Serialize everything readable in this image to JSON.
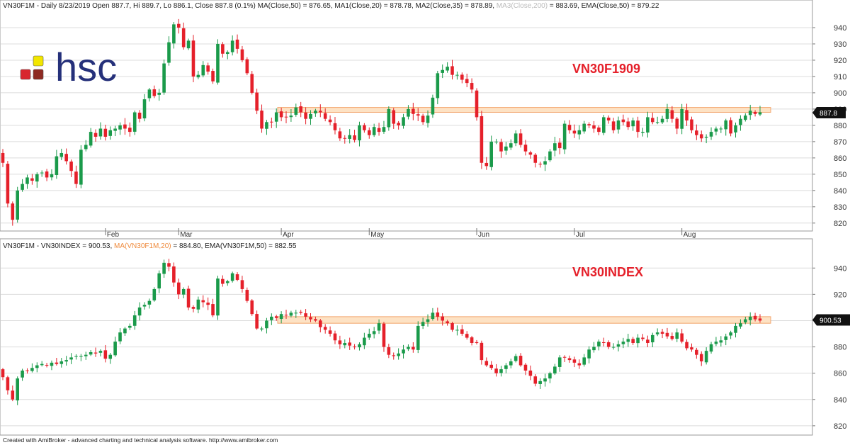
{
  "footer": "Created with AmiBroker - advanced charting and technical analysis software. http://www.amibroker.com",
  "logo": {
    "text": "hsc",
    "text_color": "#25307a",
    "square_yellow": "#f2e600",
    "square_red": "#d8262e",
    "square_dark": "#8e2a22"
  },
  "colors": {
    "up": "#1a9a4a",
    "down": "#e5202a",
    "band_fill": "#fde2c4",
    "band_stroke": "#f2a46b",
    "grid": "#dcdcdc",
    "tag_bg": "#111111"
  },
  "chart_data": [
    {
      "type": "candlestick",
      "header_parts": [
        {
          "text": "VN30F1M - Daily 8/23/2019 Open 887.7, Hi 889.7, Lo 886.1, Close 887.8 (0.1%) MA(Close,50) = 876.65, MA1(Close,20) = 878.78, MA2(Close,35) = 878.89, ",
          "color": "#222222"
        },
        {
          "text": "MA3(Close,200)",
          "color": "#bbbbbb"
        },
        {
          "text": " = 883.69, EMA(Close,50) = 879.22",
          "color": "#222222"
        }
      ],
      "title_overlay": "VN30F1909",
      "ylim": [
        816,
        950
      ],
      "yticks": [
        820,
        830,
        840,
        850,
        860,
        870,
        880,
        890,
        900,
        910,
        920,
        930,
        940
      ],
      "resistance_band": [
        888,
        891
      ],
      "last_value_label": "887.8",
      "last_value": 887.8,
      "x_month_labels": [
        {
          "label": "Feb",
          "index": 21
        },
        {
          "label": "Mar",
          "index": 36
        },
        {
          "label": "Apr",
          "index": 57
        },
        {
          "label": "May",
          "index": 75
        },
        {
          "label": "Jun",
          "index": 97
        },
        {
          "label": "Jul",
          "index": 117
        },
        {
          "label": "Aug",
          "index": 139
        }
      ],
      "closes": [
        857,
        832,
        822,
        840,
        844,
        848,
        846,
        850,
        851,
        848,
        850,
        861,
        863,
        858,
        852,
        844,
        865,
        868,
        876,
        873,
        878,
        873,
        877,
        878,
        880,
        878,
        876,
        888,
        884,
        896,
        902,
        898,
        900,
        918,
        931,
        942,
        940,
        928,
        932,
        910,
        911,
        917,
        913,
        907,
        930,
        924,
        925,
        932,
        927,
        920,
        912,
        900,
        889,
        878,
        882,
        882,
        888,
        885,
        885,
        886,
        891,
        888,
        884,
        887,
        889,
        888,
        884,
        882,
        877,
        872,
        872,
        874,
        871,
        880,
        877,
        874,
        879,
        876,
        879,
        890,
        881,
        880,
        885,
        890,
        887,
        886,
        882,
        886,
        897,
        912,
        914,
        916,
        911,
        911,
        908,
        906,
        902,
        885,
        857,
        855,
        870,
        870,
        864,
        867,
        869,
        875,
        868,
        864,
        862,
        857,
        856,
        858,
        864,
        869,
        866,
        881,
        877,
        875,
        877,
        881,
        880,
        878,
        876,
        885,
        883,
        877,
        883,
        882,
        879,
        883,
        876,
        876,
        885,
        882,
        882,
        884,
        890,
        884,
        878,
        890,
        883,
        877,
        874,
        872,
        873,
        876,
        878,
        878,
        883,
        875,
        880,
        884,
        886,
        889,
        887,
        888
      ]
    },
    {
      "type": "candlestick",
      "header_parts": [
        {
          "text": "VN30F1M - VN30INDEX = 900.53, ",
          "color": "#222222"
        },
        {
          "text": "MA(VN30F1M,20)",
          "color": "#ef8a3c"
        },
        {
          "text": " = 884.80, EMA(VN30F1M,50) = 882.55",
          "color": "#222222"
        }
      ],
      "title_overlay": "VN30INDEX",
      "ylim": [
        814,
        952
      ],
      "yticks": [
        820,
        840,
        860,
        880,
        900,
        920,
        940
      ],
      "resistance_band": [
        898,
        903
      ],
      "last_value_label": "900.53",
      "last_value": 900.53,
      "closes": [
        857,
        847,
        840,
        856,
        862,
        862,
        864,
        866,
        867,
        866,
        868,
        867,
        869,
        870,
        872,
        873,
        873,
        874,
        876,
        875,
        877,
        871,
        874,
        884,
        891,
        894,
        896,
        904,
        910,
        912,
        915,
        924,
        936,
        944,
        941,
        929,
        920,
        924,
        910,
        909,
        916,
        914,
        912,
        904,
        932,
        928,
        930,
        936,
        931,
        924,
        915,
        905,
        894,
        894,
        900,
        903,
        902,
        905,
        904,
        906,
        906,
        906,
        903,
        901,
        900,
        895,
        893,
        890,
        885,
        882,
        883,
        881,
        880,
        882,
        887,
        890,
        892,
        898,
        880,
        874,
        873,
        875,
        878,
        880,
        878,
        896,
        899,
        901,
        906,
        903,
        900,
        898,
        893,
        893,
        890,
        887,
        883,
        883,
        870,
        866,
        864,
        860,
        863,
        866,
        869,
        873,
        866,
        862,
        858,
        852,
        854,
        856,
        860,
        865,
        872,
        872,
        870,
        868,
        866,
        872,
        878,
        880,
        884,
        883,
        880,
        880,
        882,
        884,
        886,
        883,
        887,
        886,
        883,
        889,
        891,
        890,
        888,
        886,
        891,
        884,
        879,
        878,
        874,
        869,
        877,
        882,
        884,
        885,
        888,
        891,
        896,
        898,
        901,
        903,
        901,
        900
      ]
    }
  ]
}
